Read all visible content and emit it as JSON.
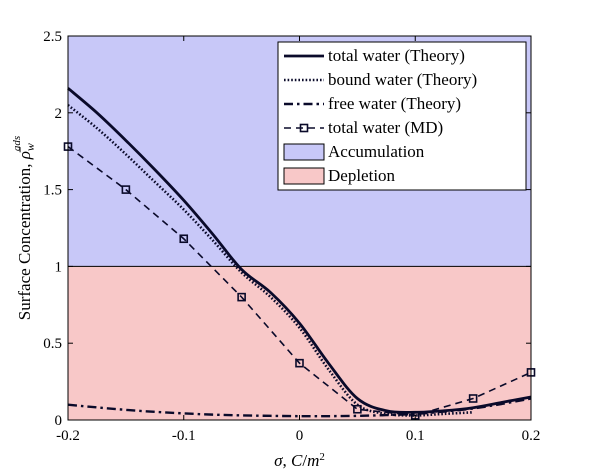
{
  "chart_data": {
    "type": "line",
    "title": "",
    "xlabel": "σ, C/m²",
    "ylabel": "Surface Concentration, ρ̄_w^ads",
    "xlim": [
      -0.2,
      0.2
    ],
    "ylim": [
      0,
      2.5
    ],
    "x_ticks": [
      "-0.2",
      "-0.1",
      "0",
      "0.1",
      "0.2"
    ],
    "y_ticks": [
      "0",
      "0.5",
      "1",
      "1.5",
      "2",
      "2.5"
    ],
    "grid": false,
    "legend_position": "top-right",
    "regions": [
      {
        "name": "Accumulation",
        "y_range": [
          1,
          2.5
        ],
        "color": "#c8c8f8"
      },
      {
        "name": "Depletion",
        "y_range": [
          0,
          1
        ],
        "color": "#f8c8c8"
      }
    ],
    "series": [
      {
        "name": "total water (Theory)",
        "style": "solid",
        "x": [
          -0.2,
          -0.175,
          -0.15,
          -0.125,
          -0.1,
          -0.075,
          -0.05,
          -0.025,
          0,
          0.025,
          0.05,
          0.075,
          0.1,
          0.125,
          0.15,
          0.175,
          0.2
        ],
        "y": [
          2.16,
          2.0,
          1.82,
          1.63,
          1.43,
          1.21,
          0.98,
          0.83,
          0.63,
          0.37,
          0.14,
          0.06,
          0.05,
          0.06,
          0.08,
          0.115,
          0.15
        ]
      },
      {
        "name": "bound water (Theory)",
        "style": "dotted",
        "x": [
          -0.2,
          -0.175,
          -0.15,
          -0.125,
          -0.1,
          -0.075,
          -0.05,
          -0.025,
          0,
          0.025,
          0.05,
          0.075,
          0.1,
          0.125,
          0.15
        ],
        "y": [
          2.05,
          1.9,
          1.73,
          1.55,
          1.37,
          1.17,
          0.96,
          0.8,
          0.6,
          0.33,
          0.1,
          0.04,
          0.03,
          0.04,
          0.05
        ]
      },
      {
        "name": "free water (Theory)",
        "style": "dashdot",
        "x": [
          -0.2,
          -0.175,
          -0.15,
          -0.125,
          -0.1,
          -0.075,
          -0.05,
          -0.025,
          0,
          0.025,
          0.05,
          0.075,
          0.1,
          0.125,
          0.15,
          0.175,
          0.2
        ],
        "y": [
          0.1,
          0.082,
          0.066,
          0.053,
          0.043,
          0.035,
          0.03,
          0.027,
          0.025,
          0.025,
          0.027,
          0.032,
          0.04,
          0.055,
          0.075,
          0.105,
          0.14
        ]
      },
      {
        "name": "total water (MD)",
        "style": "dashed-square",
        "x": [
          -0.2,
          -0.15,
          -0.1,
          -0.05,
          0,
          0.05,
          0.1,
          0.15,
          0.2
        ],
        "y": [
          1.78,
          1.5,
          1.18,
          0.8,
          0.37,
          0.07,
          0.03,
          0.14,
          0.31
        ]
      }
    ]
  }
}
